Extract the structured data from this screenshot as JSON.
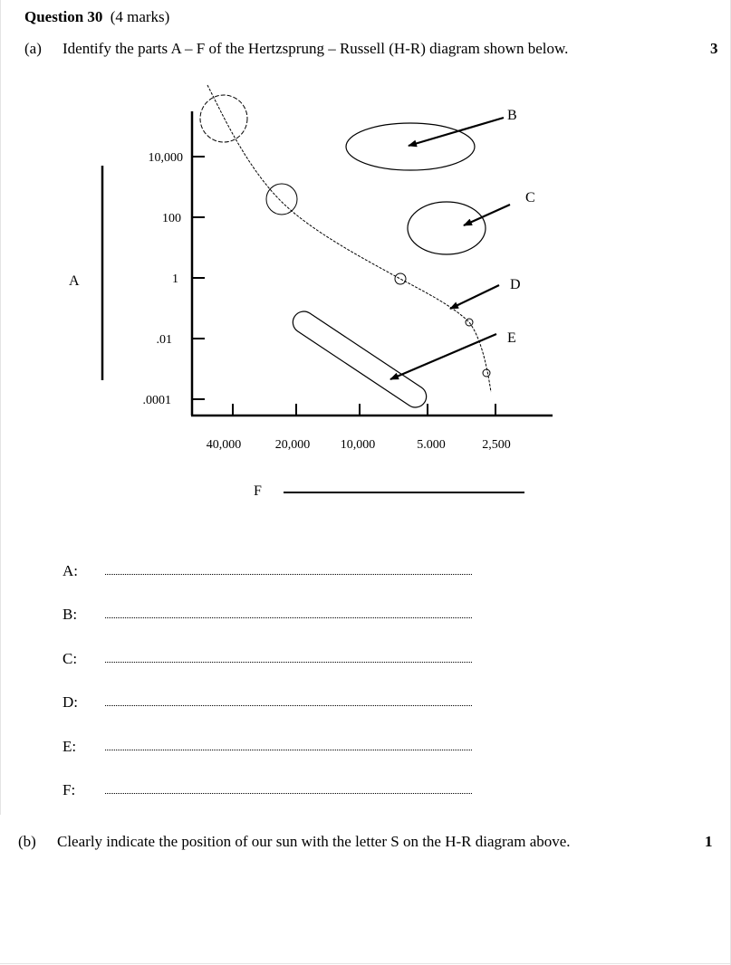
{
  "question": {
    "title": "Question 30",
    "marks": "(4 marks)"
  },
  "part_a": {
    "label": "(a)",
    "text": "Identify the parts A – F of the Hertzsprung – Russell (H-R) diagram shown below.",
    "marks": "3"
  },
  "diagram": {
    "y_ticks": [
      "10,000",
      "100",
      "1",
      ".01",
      ".0001"
    ],
    "x_ticks": [
      "40,000",
      "20,000",
      "10,000",
      "5.000",
      "2,500"
    ],
    "labels": {
      "A": "A",
      "B": "B",
      "C": "C",
      "D": "D",
      "E": "E",
      "F": "F"
    }
  },
  "answers": [
    {
      "letter": "A:"
    },
    {
      "letter": "B:"
    },
    {
      "letter": "C:"
    },
    {
      "letter": "D:"
    },
    {
      "letter": "E:"
    },
    {
      "letter": "F:"
    }
  ],
  "part_b": {
    "label": "(b)",
    "text": "Clearly indicate the position of our sun with the letter S on the H-R diagram above.",
    "marks": "1"
  }
}
